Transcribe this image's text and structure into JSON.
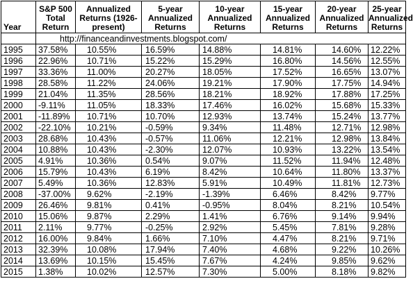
{
  "headers": {
    "year": "Year",
    "sp500": "S&P 500 Total Return",
    "annualized": "Annualized Returns (1926-present)",
    "y5": "5-year Annualized Returns",
    "y10": "10-year Annualized Returns",
    "y15": "15-year Annualized Returns",
    "y20": "20-year Annualized Returns",
    "y25": "25-year Annualized Returns"
  },
  "source_url": "http://financeandinvestments.blogspot.com/",
  "rows": [
    [
      "1995",
      "37.58%",
      "10.55%",
      "16.59%",
      "14.88%",
      "14.81%",
      "14.60%",
      "12.22%"
    ],
    [
      "1996",
      "22.96%",
      "10.71%",
      "15.22%",
      "15.29%",
      "16.80%",
      "14.56%",
      "12.55%"
    ],
    [
      "1997",
      "33.36%",
      "11.00%",
      "20.27%",
      "18.05%",
      "17.52%",
      "16.65%",
      "13.07%"
    ],
    [
      "1998",
      "28.58%",
      "11.22%",
      "24.06%",
      "19.21%",
      "17.90%",
      "17.75%",
      "14.94%"
    ],
    [
      "1999",
      "21.04%",
      "11.35%",
      "28.56%",
      "18.21%",
      "18.92%",
      "17.88%",
      "17.25%"
    ],
    [
      "2000",
      "-9.11%",
      "11.05%",
      "18.33%",
      "17.46%",
      "16.02%",
      "15.68%",
      "15.33%"
    ],
    [
      "2001",
      "-11.89%",
      "10.71%",
      "10.70%",
      "12.93%",
      "13.74%",
      "15.24%",
      "13.77%"
    ],
    [
      "2002",
      "-22.10%",
      "10.21%",
      "-0.59%",
      "9.34%",
      "11.48%",
      "12.71%",
      "12.98%"
    ],
    [
      "2003",
      "28.68%",
      "10.43%",
      "-0.57%",
      "11.06%",
      "12.21%",
      "12.98%",
      "13.84%"
    ],
    [
      "2004",
      "10.88%",
      "10.43%",
      "-2.30%",
      "12.07%",
      "10.93%",
      "13.22%",
      "13.54%"
    ],
    [
      "2005",
      "4.91%",
      "10.36%",
      "0.54%",
      "9.07%",
      "11.52%",
      "11.94%",
      "12.48%"
    ],
    [
      "2006",
      "15.79%",
      "10.43%",
      "6.19%",
      "8.42%",
      "10.64%",
      "11.80%",
      "13.37%"
    ],
    [
      "2007",
      "5.49%",
      "10.36%",
      "12.83%",
      "5.91%",
      "10.49%",
      "11.81%",
      "12.73%"
    ],
    [
      "2008",
      "-37.00%",
      "9.62%",
      "-2.19%",
      "-1.39%",
      "6.46%",
      "8.42%",
      "9.77%"
    ],
    [
      "2009",
      "26.46%",
      "9.81%",
      "0.41%",
      "-0.95%",
      "8.04%",
      "8.21%",
      "10.54%"
    ],
    [
      "2010",
      "15.06%",
      "9.87%",
      "2.29%",
      "1.41%",
      "6.76%",
      "9.14%",
      "9.94%"
    ],
    [
      "2011",
      "2.11%",
      "9.77%",
      "-0.25%",
      "2.92%",
      "5.45%",
      "7.81%",
      "9.28%"
    ],
    [
      "2012",
      "16.00%",
      "9.84%",
      "1.66%",
      "7.10%",
      "4.47%",
      "8.21%",
      "9.71%"
    ],
    [
      "2013",
      "32.39%",
      "10.08%",
      "17.94%",
      "7.40%",
      "4.68%",
      "9.22%",
      "10.26%"
    ],
    [
      "2014",
      "13.69%",
      "10.15%",
      "15.45%",
      "7.67%",
      "4.24%",
      "9.85%",
      "9.62%"
    ],
    [
      "2015",
      "1.38%",
      "10.02%",
      "12.57%",
      "7.30%",
      "5.00%",
      "8.18%",
      "9.82%"
    ]
  ]
}
